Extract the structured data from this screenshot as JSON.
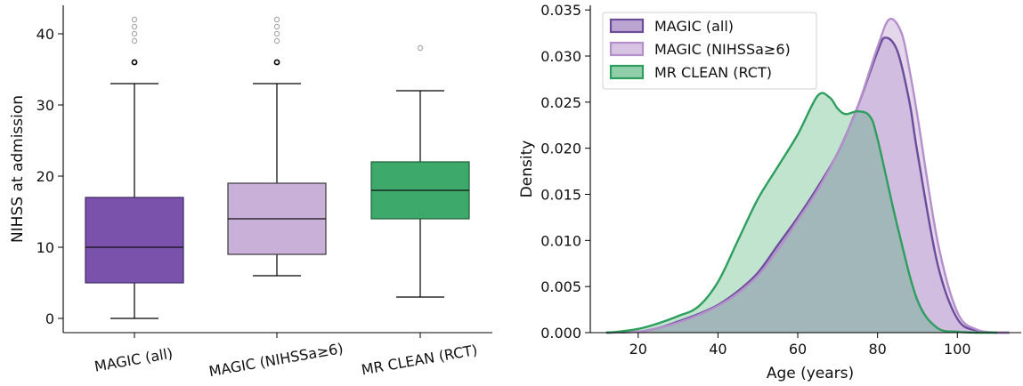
{
  "chart_data": [
    {
      "type": "box",
      "ylabel": "NIHSS at admission",
      "ylim": [
        -2,
        44
      ],
      "yticks": [
        0,
        10,
        20,
        30,
        40
      ],
      "groups": [
        {
          "name": "MAGIC (all)",
          "color": "#7b52ab",
          "edge": "#3e2766",
          "min": 0,
          "q1": 5,
          "median": 10,
          "q3": 17,
          "max": 33,
          "outliers_bold": [
            36
          ],
          "outliers_light": [
            39,
            40,
            41,
            42
          ]
        },
        {
          "name": "MAGIC (NIHSSa≥6)",
          "color": "#c9b0d9",
          "edge": "#3a3a3a",
          "min": 6,
          "q1": 9,
          "median": 14,
          "q3": 19,
          "max": 33,
          "outliers_bold": [
            36
          ],
          "outliers_light": [
            39,
            40,
            41,
            42
          ]
        },
        {
          "name": "MR CLEAN (RCT)",
          "color": "#3daa6b",
          "edge": "#1f5e38",
          "min": 3,
          "q1": 14,
          "median": 18,
          "q3": 22,
          "max": 32,
          "outliers_bold": [],
          "outliers_light": [
            38
          ]
        }
      ]
    },
    {
      "type": "area",
      "xlabel": "Age (years)",
      "ylabel": "Density",
      "xlim": [
        8,
        116
      ],
      "ylim": [
        0,
        0.0355
      ],
      "xticks": [
        20,
        40,
        60,
        80,
        100
      ],
      "yticks": [
        "0.000",
        "0.005",
        "0.010",
        "0.015",
        "0.020",
        "0.025",
        "0.030",
        "0.035"
      ],
      "legend_position": "top-left",
      "series": [
        {
          "name": "MAGIC (all)",
          "line_color": "#6b4c9a",
          "fill_color": "#8c6bb1",
          "fill_opacity": 0.35,
          "x": [
            12,
            20,
            25,
            30,
            35,
            40,
            45,
            50,
            55,
            60,
            65,
            70,
            75,
            80,
            82,
            85,
            88,
            90,
            95,
            100,
            105,
            110,
            113
          ],
          "y": [
            0,
            0.0001,
            0.0005,
            0.0012,
            0.002,
            0.003,
            0.0045,
            0.0065,
            0.0095,
            0.0125,
            0.0158,
            0.0195,
            0.0245,
            0.0305,
            0.032,
            0.0305,
            0.025,
            0.0195,
            0.0075,
            0.0015,
            0.0002,
            0,
            0
          ]
        },
        {
          "name": "MAGIC (NIHSSa≥6)",
          "line_color": "#b48fcc",
          "fill_color": "#c9b0d9",
          "fill_opacity": 0.5,
          "x": [
            12,
            20,
            25,
            30,
            35,
            40,
            45,
            50,
            55,
            60,
            65,
            70,
            75,
            80,
            83,
            86,
            88,
            90,
            95,
            100,
            105,
            110,
            113
          ],
          "y": [
            0,
            0.0001,
            0.0005,
            0.0011,
            0.0019,
            0.0029,
            0.0043,
            0.0062,
            0.009,
            0.0122,
            0.0155,
            0.0195,
            0.0245,
            0.031,
            0.034,
            0.0325,
            0.0285,
            0.0235,
            0.01,
            0.0022,
            0.0003,
            0,
            0
          ]
        },
        {
          "name": "MR CLEAN (RCT)",
          "line_color": "#2e9e5e",
          "fill_color": "#3daa6b",
          "fill_opacity": 0.32,
          "x": [
            12,
            15,
            20,
            25,
            30,
            35,
            40,
            45,
            50,
            55,
            60,
            65,
            68,
            70,
            72,
            75,
            78,
            80,
            85,
            90,
            95,
            100,
            105,
            110
          ],
          "y": [
            0,
            0.0001,
            0.0004,
            0.001,
            0.0018,
            0.0028,
            0.0055,
            0.01,
            0.0145,
            0.018,
            0.0215,
            0.0257,
            0.0255,
            0.0243,
            0.0237,
            0.024,
            0.0235,
            0.021,
            0.0115,
            0.0035,
            0.0005,
            0.0001,
            0,
            0
          ]
        }
      ]
    }
  ]
}
